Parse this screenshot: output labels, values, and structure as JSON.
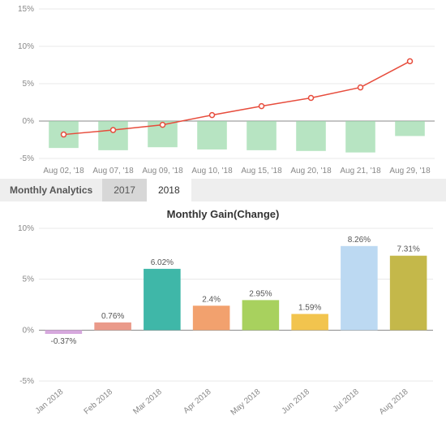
{
  "top_chart": {
    "type": "combo-line-bar",
    "ylim": [
      -5,
      15
    ],
    "yticks": [
      -5,
      0,
      5,
      10,
      15
    ],
    "ytick_suffix": "%",
    "categories": [
      "Aug 02, '18",
      "Aug 07, '18",
      "Aug 09, '18",
      "Aug 10, '18",
      "Aug 15, '18",
      "Aug 20, '18",
      "Aug 21, '18",
      "Aug 29, '18"
    ],
    "line_values": [
      -1.8,
      -1.2,
      -0.5,
      0.8,
      2.0,
      3.1,
      4.5,
      8.0
    ],
    "bar_values": [
      -3.6,
      -3.9,
      -3.5,
      -3.8,
      -3.9,
      -4.0,
      -4.2,
      -2.0
    ],
    "line_color": "#e74c3c",
    "marker_color": "#e74c3c",
    "marker_size": 3,
    "line_width": 1.5,
    "bar_color": "#98d8a8",
    "zero_line_color": "#888888",
    "grid_color": "#e8e8e8",
    "axis_label_color": "#888888",
    "axis_label_fontsize": 10,
    "background_color": "#ffffff",
    "bar_width": 0.6
  },
  "monthly_analytics": {
    "label": "Monthly Analytics",
    "tabs": [
      {
        "label": "2017",
        "active": false
      },
      {
        "label": "2018",
        "active": true
      }
    ]
  },
  "bottom_chart": {
    "type": "bar",
    "title": "Monthly Gain(Change)",
    "title_fontsize": 13,
    "ylim": [
      -5,
      10
    ],
    "yticks": [
      -5,
      0,
      5,
      10
    ],
    "ytick_suffix": "%",
    "categories": [
      "Jan 2018",
      "Feb 2018",
      "Mar 2018",
      "Apr 2018",
      "May 2018",
      "Jun 2018",
      "Jul 2018",
      "Aug 2018"
    ],
    "values": [
      -0.37,
      0.76,
      6.02,
      2.4,
      2.95,
      1.59,
      8.26,
      7.31
    ],
    "value_labels": [
      "-0.37%",
      "0.76%",
      "6.02%",
      "2.4%",
      "2.95%",
      "1.59%",
      "8.26%",
      "7.31%"
    ],
    "bar_colors": [
      "#d6a8dd",
      "#ea9a8a",
      "#3fb7a8",
      "#f2a16e",
      "#a8d15e",
      "#f2c44e",
      "#bcd9f2",
      "#c4b84a"
    ],
    "zero_line_color": "#888888",
    "grid_color": "#e8e8e8",
    "axis_label_color": "#888888",
    "axis_label_fontsize": 10,
    "value_label_color": "#555555",
    "value_label_fontsize": 10,
    "xlabel_rotation": -40,
    "background_color": "#ffffff",
    "bar_width": 0.75
  }
}
